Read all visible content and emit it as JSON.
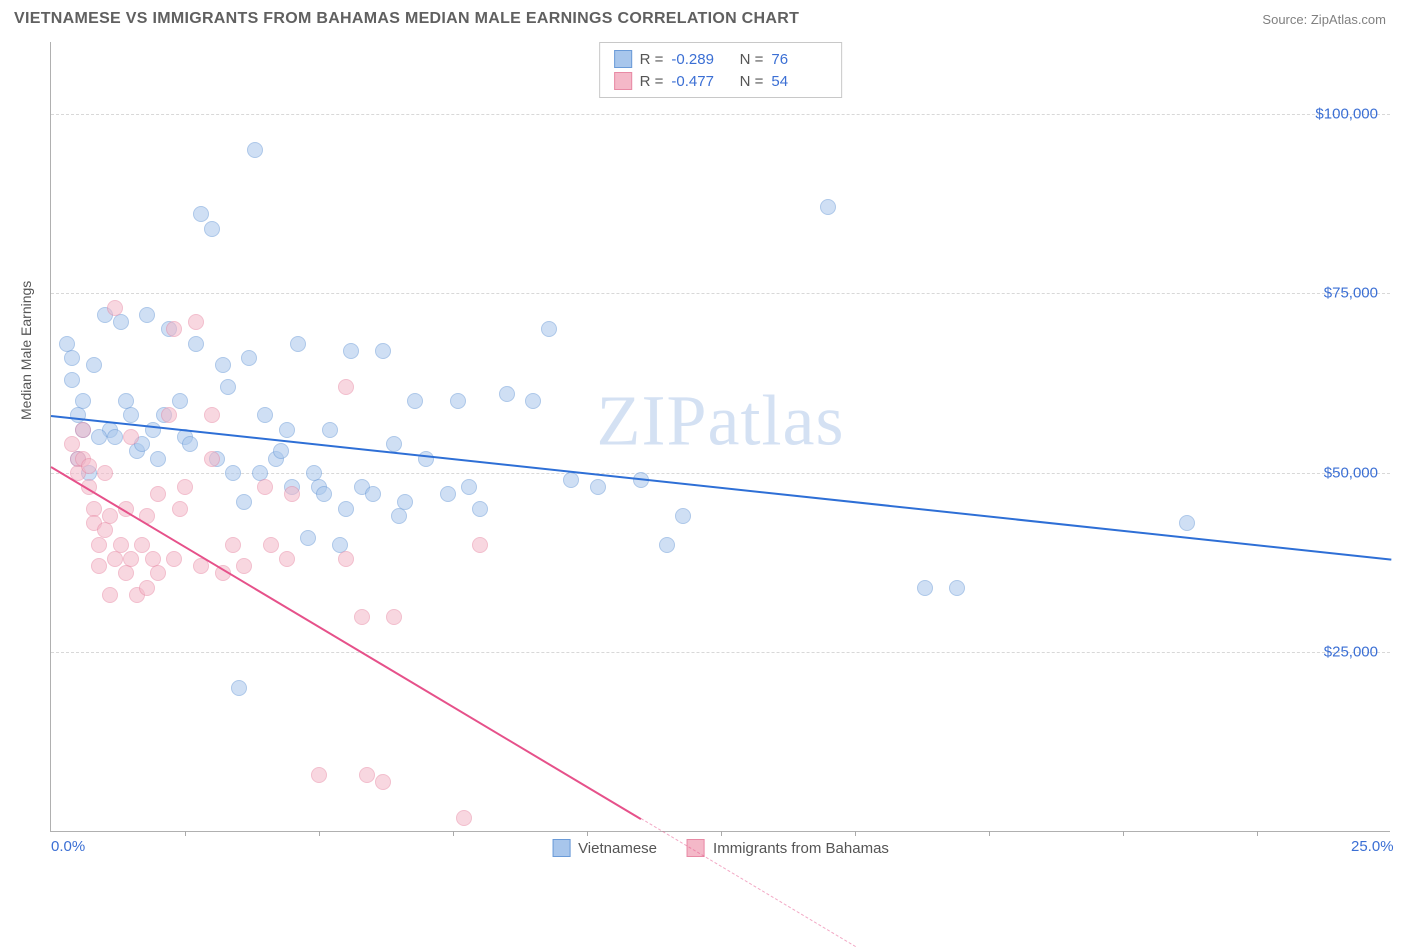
{
  "header": {
    "title": "VIETNAMESE VS IMMIGRANTS FROM BAHAMAS MEDIAN MALE EARNINGS CORRELATION CHART",
    "source_label": "Source:",
    "source_value": "ZipAtlas.com"
  },
  "chart": {
    "type": "scatter",
    "ylabel": "Median Male Earnings",
    "xlim": [
      0,
      25
    ],
    "ylim": [
      0,
      110000
    ],
    "xtick_labels": {
      "0": "0.0%",
      "25": "25.0%"
    },
    "xtick_minor": [
      2.5,
      5,
      7.5,
      10,
      12.5,
      15,
      17.5,
      20,
      22.5
    ],
    "ytick_labels": {
      "25000": "$25,000",
      "50000": "$50,000",
      "75000": "$75,000",
      "100000": "$100,000"
    },
    "grid_color": "#d8d8d8",
    "background_color": "#ffffff",
    "axis_label_color": "#3b6fd4",
    "point_radius": 8,
    "point_opacity": 0.55,
    "series": [
      {
        "name": "Vietnamese",
        "color_fill": "#a8c6ec",
        "color_stroke": "#6b9bd8",
        "r": "-0.289",
        "n": "76",
        "trend": {
          "x1": 0,
          "y1": 58000,
          "x2": 25,
          "y2": 38000,
          "color": "#2e6fd6"
        },
        "points": [
          [
            0.3,
            68000
          ],
          [
            0.4,
            66000
          ],
          [
            0.4,
            63000
          ],
          [
            0.6,
            56000
          ],
          [
            0.6,
            60000
          ],
          [
            0.5,
            52000
          ],
          [
            0.7,
            50000
          ],
          [
            0.8,
            65000
          ],
          [
            1.0,
            72000
          ],
          [
            1.1,
            56000
          ],
          [
            1.2,
            55000
          ],
          [
            1.3,
            71000
          ],
          [
            1.5,
            58000
          ],
          [
            1.6,
            53000
          ],
          [
            1.8,
            72000
          ],
          [
            1.9,
            56000
          ],
          [
            2.0,
            52000
          ],
          [
            2.2,
            70000
          ],
          [
            2.4,
            60000
          ],
          [
            2.5,
            55000
          ],
          [
            2.7,
            68000
          ],
          [
            2.8,
            86000
          ],
          [
            3.0,
            84000
          ],
          [
            3.2,
            65000
          ],
          [
            3.3,
            62000
          ],
          [
            3.4,
            50000
          ],
          [
            3.5,
            20000
          ],
          [
            3.6,
            46000
          ],
          [
            3.7,
            66000
          ],
          [
            3.8,
            95000
          ],
          [
            4.0,
            58000
          ],
          [
            4.2,
            52000
          ],
          [
            4.4,
            56000
          ],
          [
            4.5,
            48000
          ],
          [
            4.6,
            68000
          ],
          [
            4.8,
            41000
          ],
          [
            5.0,
            48000
          ],
          [
            5.1,
            47000
          ],
          [
            5.2,
            56000
          ],
          [
            5.4,
            40000
          ],
          [
            5.6,
            67000
          ],
          [
            5.8,
            48000
          ],
          [
            6.0,
            47000
          ],
          [
            6.2,
            67000
          ],
          [
            6.4,
            54000
          ],
          [
            6.6,
            46000
          ],
          [
            6.8,
            60000
          ],
          [
            7.0,
            52000
          ],
          [
            7.4,
            47000
          ],
          [
            7.6,
            60000
          ],
          [
            8.0,
            45000
          ],
          [
            8.5,
            61000
          ],
          [
            9.0,
            60000
          ],
          [
            9.3,
            70000
          ],
          [
            9.7,
            49000
          ],
          [
            10.2,
            48000
          ],
          [
            11.0,
            49000
          ],
          [
            11.5,
            40000
          ],
          [
            11.8,
            44000
          ],
          [
            14.5,
            87000
          ],
          [
            16.3,
            34000
          ],
          [
            16.9,
            34000
          ],
          [
            21.2,
            43000
          ],
          [
            0.5,
            58000
          ],
          [
            0.9,
            55000
          ],
          [
            1.4,
            60000
          ],
          [
            1.7,
            54000
          ],
          [
            2.1,
            58000
          ],
          [
            2.6,
            54000
          ],
          [
            3.1,
            52000
          ],
          [
            3.9,
            50000
          ],
          [
            4.3,
            53000
          ],
          [
            4.9,
            50000
          ],
          [
            5.5,
            45000
          ],
          [
            6.5,
            44000
          ],
          [
            7.8,
            48000
          ]
        ]
      },
      {
        "name": "Immigants from Bahamas",
        "display_name": "Immigrants from Bahamas",
        "color_fill": "#f4b8c8",
        "color_stroke": "#e88aa5",
        "r": "-0.477",
        "n": "54",
        "trend": {
          "x1": 0,
          "y1": 51000,
          "x2": 11,
          "y2": 2000,
          "color": "#e6518a",
          "dash_to_x": 15
        },
        "points": [
          [
            0.4,
            54000
          ],
          [
            0.5,
            52000
          ],
          [
            0.5,
            50000
          ],
          [
            0.6,
            56000
          ],
          [
            0.6,
            52000
          ],
          [
            0.7,
            48000
          ],
          [
            0.7,
            51000
          ],
          [
            0.8,
            45000
          ],
          [
            0.8,
            43000
          ],
          [
            0.9,
            40000
          ],
          [
            0.9,
            37000
          ],
          [
            1.0,
            50000
          ],
          [
            1.0,
            42000
          ],
          [
            1.1,
            44000
          ],
          [
            1.1,
            33000
          ],
          [
            1.2,
            38000
          ],
          [
            1.2,
            73000
          ],
          [
            1.3,
            40000
          ],
          [
            1.4,
            36000
          ],
          [
            1.4,
            45000
          ],
          [
            1.5,
            55000
          ],
          [
            1.5,
            38000
          ],
          [
            1.6,
            33000
          ],
          [
            1.7,
            40000
          ],
          [
            1.8,
            34000
          ],
          [
            1.8,
            44000
          ],
          [
            1.9,
            38000
          ],
          [
            2.0,
            47000
          ],
          [
            2.0,
            36000
          ],
          [
            2.2,
            58000
          ],
          [
            2.3,
            70000
          ],
          [
            2.3,
            38000
          ],
          [
            2.4,
            45000
          ],
          [
            2.5,
            48000
          ],
          [
            2.7,
            71000
          ],
          [
            2.8,
            37000
          ],
          [
            3.0,
            52000
          ],
          [
            3.0,
            58000
          ],
          [
            3.2,
            36000
          ],
          [
            3.4,
            40000
          ],
          [
            3.6,
            37000
          ],
          [
            4.0,
            48000
          ],
          [
            4.1,
            40000
          ],
          [
            4.4,
            38000
          ],
          [
            4.5,
            47000
          ],
          [
            5.0,
            8000
          ],
          [
            5.5,
            62000
          ],
          [
            5.5,
            38000
          ],
          [
            5.8,
            30000
          ],
          [
            5.9,
            8000
          ],
          [
            6.2,
            7000
          ],
          [
            6.4,
            30000
          ],
          [
            7.7,
            2000
          ],
          [
            8.0,
            40000
          ]
        ]
      }
    ],
    "legend": {
      "items": [
        {
          "label": "Vietnamese",
          "fill": "#a8c6ec",
          "stroke": "#6b9bd8"
        },
        {
          "label": "Immigrants from Bahamas",
          "fill": "#f4b8c8",
          "stroke": "#e88aa5"
        }
      ]
    },
    "watermark": "ZIPatlas"
  }
}
